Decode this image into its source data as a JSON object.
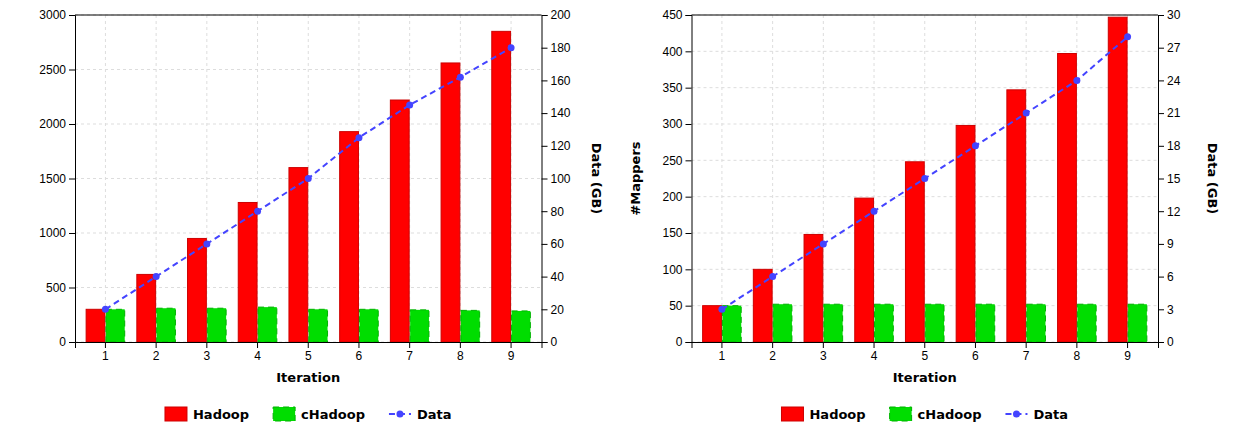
{
  "chart_data": [
    {
      "type": "bar",
      "x_label": "Iteration",
      "y2_label": "Data (GB)",
      "categories": [
        "1",
        "2",
        "3",
        "4",
        "5",
        "6",
        "7",
        "8",
        "9"
      ],
      "series": [
        {
          "name": "Hadoop",
          "color": "#ff0000",
          "values": [
            300,
            620,
            950,
            1280,
            1600,
            1930,
            2220,
            2560,
            2850
          ]
        },
        {
          "name": "cHadoop",
          "color": "#00dd00",
          "line_style": "dashed",
          "values": [
            300,
            310,
            310,
            320,
            300,
            300,
            295,
            290,
            285
          ]
        },
        {
          "name": "Data",
          "type": "line",
          "axis": "y2",
          "color": "#4444ff",
          "marker": "circle",
          "line_style": "dashed",
          "values": [
            20,
            40,
            60,
            80,
            100,
            125,
            145,
            162,
            180
          ]
        }
      ],
      "ylim": [
        0,
        3000
      ],
      "yticks": [
        0,
        500,
        1000,
        1500,
        2000,
        2500,
        3000
      ],
      "y2lim": [
        0,
        200
      ],
      "y2ticks": [
        0,
        20,
        40,
        60,
        80,
        100,
        120,
        140,
        160,
        180,
        200
      ],
      "grid": true,
      "legend": "bottom"
    },
    {
      "type": "bar",
      "x_label": "Iteration",
      "y_label": "#Mappers",
      "y2_label": "Data (GB)",
      "categories": [
        "1",
        "2",
        "3",
        "4",
        "5",
        "6",
        "7",
        "8",
        "9"
      ],
      "series": [
        {
          "name": "Hadoop",
          "color": "#ff0000",
          "values": [
            50,
            100,
            148,
            198,
            248,
            298,
            347,
            397,
            447
          ]
        },
        {
          "name": "cHadoop",
          "color": "#00dd00",
          "line_style": "dashed",
          "values": [
            50,
            52,
            52,
            52,
            52,
            52,
            52,
            52,
            52
          ]
        },
        {
          "name": "Data",
          "type": "line",
          "axis": "y2",
          "color": "#4444ff",
          "marker": "circle",
          "line_style": "dashed",
          "values": [
            3,
            6,
            9,
            12,
            15,
            18,
            21,
            24,
            28
          ]
        }
      ],
      "ylim": [
        0,
        450
      ],
      "yticks": [
        0,
        50,
        100,
        150,
        200,
        250,
        300,
        350,
        400,
        450
      ],
      "y2lim": [
        0,
        30
      ],
      "y2ticks": [
        0,
        3,
        6,
        9,
        12,
        15,
        18,
        21,
        24,
        27,
        30
      ],
      "grid": true,
      "legend": "bottom"
    }
  ]
}
